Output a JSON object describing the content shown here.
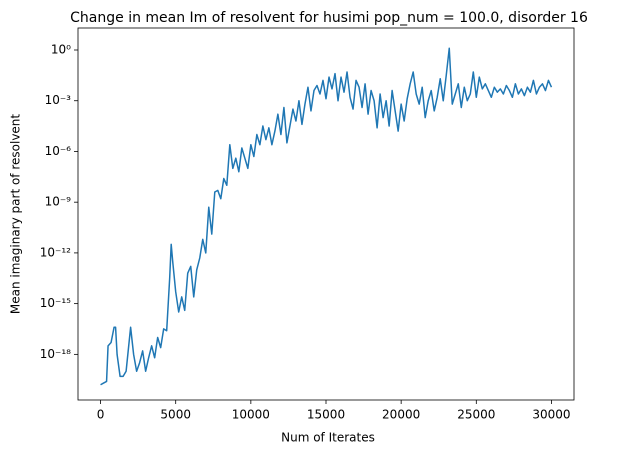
{
  "chart_data": {
    "type": "line",
    "title": "Change in mean Im of resolvent for husimi pop_num = 100.0, disorder 16",
    "x_label": "Num of Iterates",
    "y_label": "Mean imaginary part of resolvent",
    "y_scale": "log",
    "grid": false,
    "xlim": [
      -1500,
      31500
    ],
    "ylim": [
      2e-21,
      20
    ],
    "xticks": [
      0,
      5000,
      10000,
      15000,
      20000,
      25000,
      30000
    ],
    "yticks": [
      {
        "value": 1e-18,
        "label": "10⁻¹⁸"
      },
      {
        "value": 1e-15,
        "label": "10⁻¹⁵"
      },
      {
        "value": 1e-12,
        "label": "10⁻¹²"
      },
      {
        "value": 1e-09,
        "label": "10⁻⁹"
      },
      {
        "value": 1e-06,
        "label": "10⁻⁶"
      },
      {
        "value": 0.001,
        "label": "10⁻³"
      },
      {
        "value": 1,
        "label": "10⁰"
      }
    ],
    "x": [
      0,
      200,
      400,
      500,
      700,
      900,
      1000,
      1100,
      1300,
      1500,
      1700,
      2000,
      2200,
      2400,
      2600,
      2800,
      3000,
      3200,
      3400,
      3600,
      3800,
      4000,
      4200,
      4400,
      4600,
      4700,
      4800,
      5000,
      5200,
      5400,
      5600,
      5800,
      6000,
      6200,
      6400,
      6600,
      6800,
      7000,
      7200,
      7400,
      7600,
      7800,
      8000,
      8200,
      8400,
      8600,
      8800,
      9000,
      9200,
      9400,
      9600,
      9800,
      10000,
      10200,
      10400,
      10600,
      10800,
      11000,
      11200,
      11400,
      11600,
      11800,
      12000,
      12200,
      12400,
      12600,
      12800,
      13000,
      13200,
      13400,
      13600,
      13800,
      14000,
      14200,
      14400,
      14600,
      14800,
      15000,
      15200,
      15400,
      15600,
      15800,
      16000,
      16200,
      16400,
      16600,
      16800,
      17000,
      17200,
      17400,
      17600,
      17800,
      18000,
      18200,
      18400,
      18600,
      18800,
      19000,
      19200,
      19400,
      19600,
      19800,
      20000,
      20200,
      20400,
      20600,
      20800,
      21000,
      21200,
      21400,
      21600,
      21800,
      22000,
      22200,
      22400,
      22600,
      22800,
      23000,
      23200,
      23400,
      23600,
      23800,
      24000,
      24200,
      24400,
      24600,
      24800,
      25000,
      25200,
      25400,
      25600,
      25800,
      26000,
      26200,
      26400,
      26600,
      26800,
      27000,
      27200,
      27400,
      27600,
      27800,
      28000,
      28200,
      28400,
      28600,
      28800,
      29000,
      29200,
      29400,
      29600,
      29800,
      30000
    ],
    "series": [
      {
        "name": "mean Im",
        "color": "#1f77b4",
        "values": [
          1.6e-20,
          2e-20,
          2.5e-20,
          3.2e-18,
          5e-18,
          4e-17,
          4e-17,
          1e-18,
          5e-20,
          5e-20,
          1e-19,
          4e-17,
          1e-18,
          1e-19,
          3.2e-19,
          1.6e-18,
          1e-19,
          6.3e-19,
          3.2e-18,
          6.3e-19,
          1e-17,
          2.5e-18,
          3.2e-17,
          2.5e-17,
          3.2e-14,
          3.2e-12,
          3.2e-13,
          5e-15,
          3.2e-16,
          2.5e-15,
          4e-16,
          6.3e-14,
          1.6e-13,
          2.5e-15,
          1e-13,
          5e-13,
          6.3e-12,
          1e-12,
          5e-10,
          1.3e-11,
          4e-09,
          5e-09,
          1.6e-09,
          2.5e-08,
          1e-08,
          2.5e-06,
          1e-07,
          4e-07,
          6.3e-08,
          1.6e-06,
          4e-07,
          1e-07,
          2.5e-06,
          5e-07,
          1e-05,
          2.5e-06,
          3.2e-05,
          5e-06,
          2.5e-05,
          2.5e-06,
          1.6e-05,
          0.00016,
          1e-05,
          0.0004,
          3.2e-06,
          3.2e-05,
          0.00032,
          6.3e-05,
          0.001,
          4e-05,
          0.00063,
          0.0063,
          0.00025,
          0.004,
          0.0079,
          0.0025,
          0.016,
          0.0013,
          0.025,
          0.005,
          0.04,
          0.001,
          0.025,
          0.0032,
          0.05,
          0.0016,
          0.00032,
          0.016,
          0.0063,
          0.0004,
          0.01,
          0.00016,
          0.004,
          0.001,
          2.5e-05,
          0.0025,
          0.0001,
          0.001,
          3.2e-05,
          0.004,
          0.00025,
          1.6e-05,
          0.00063,
          6.3e-05,
          0.0013,
          0.01,
          0.05,
          0.0025,
          0.00063,
          0.0063,
          0.0001,
          0.001,
          0.004,
          0.00025,
          0.0016,
          0.02,
          0.001,
          0.032,
          1.26,
          0.00063,
          0.0025,
          0.01,
          0.0004,
          0.0063,
          0.001,
          0.0025,
          0.05,
          0.0016,
          0.025,
          0.005,
          0.01,
          0.004,
          0.0016,
          0.0063,
          0.0032,
          0.005,
          0.0025,
          0.0079,
          0.004,
          0.0016,
          0.01,
          0.0025,
          0.005,
          0.002,
          0.0063,
          0.0032,
          0.016,
          0.0025,
          0.0063,
          0.01,
          0.004,
          0.016,
          0.0063
        ]
      }
    ]
  }
}
